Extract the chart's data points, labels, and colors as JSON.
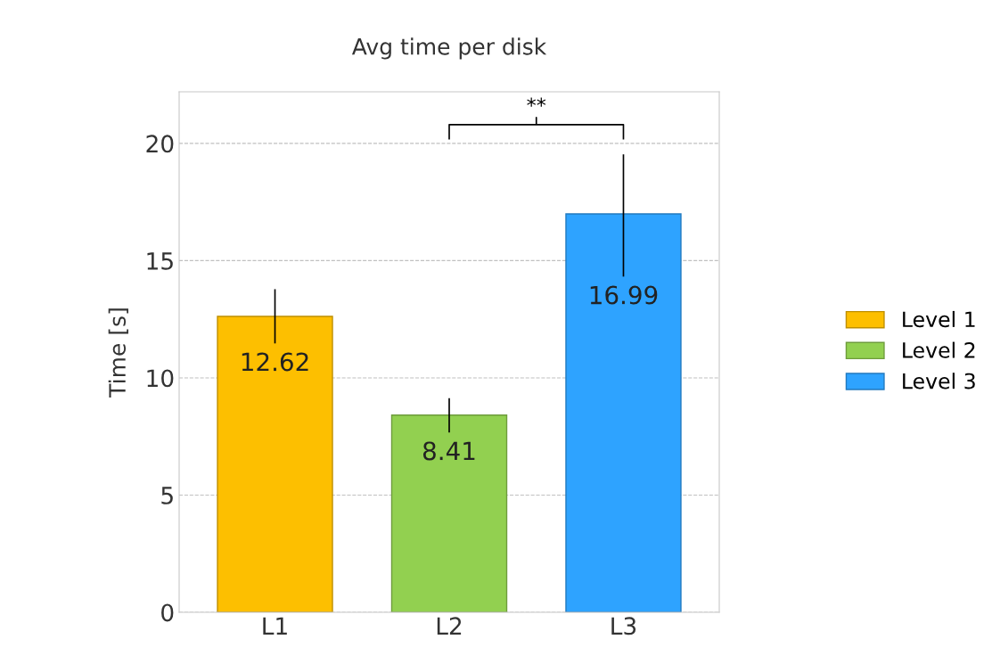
{
  "chart_data": {
    "type": "bar",
    "title": "Avg time per disk",
    "ylabel": "Time [s]",
    "categories": [
      "L1",
      "L2",
      "L3"
    ],
    "series": [
      {
        "name": "Level 1",
        "color": "#fdbf00",
        "values": [
          12.62,
          null,
          null
        ],
        "errors": [
          [
            11.5,
            13.75
          ],
          null,
          null
        ]
      },
      {
        "name": "Level 2",
        "color": "#92d050",
        "values": [
          null,
          8.41,
          null
        ],
        "errors": [
          null,
          [
            7.7,
            9.1
          ],
          null
        ]
      },
      {
        "name": "Level 3",
        "color": "#2ea3ff",
        "values": [
          null,
          null,
          16.99
        ],
        "errors": [
          null,
          null,
          [
            14.35,
            19.5
          ]
        ]
      }
    ],
    "ylim": [
      0,
      22.2
    ],
    "yticks": [
      0,
      5,
      10,
      15,
      20
    ],
    "grid": "y",
    "legend": "right",
    "data_labels": true,
    "annotations": [
      "**"
    ]
  }
}
